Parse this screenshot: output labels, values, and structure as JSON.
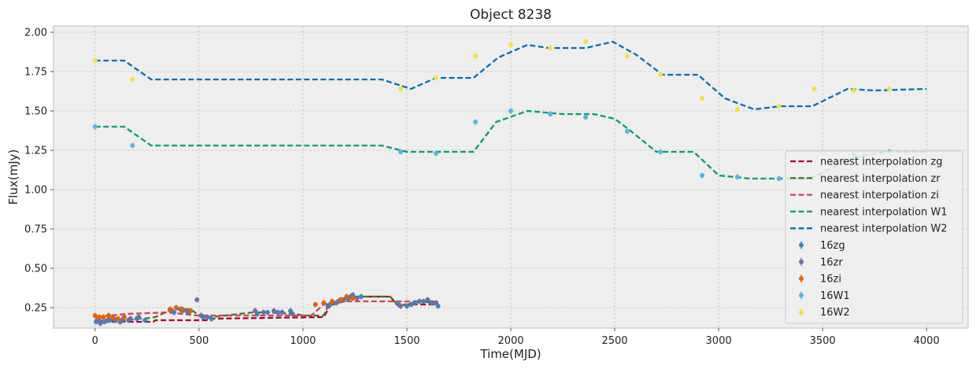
{
  "chart_data": {
    "type": "line",
    "title": "Object 8238",
    "xlabel": "Time(MJD)",
    "ylabel": "Flux(mJy)",
    "xlim": [
      -200,
      4200
    ],
    "ylim": [
      0.12,
      2.04
    ],
    "xticks": [
      0,
      500,
      1000,
      1500,
      2000,
      2500,
      3000,
      3500,
      4000
    ],
    "xtick_labels": [
      "0",
      "500",
      "1000",
      "1500",
      "2000",
      "2500",
      "3000",
      "3500",
      "4000"
    ],
    "yticks": [
      0.25,
      0.5,
      0.75,
      1.0,
      1.25,
      1.5,
      1.75,
      2.0
    ],
    "ytick_labels": [
      "0.25",
      "0.50",
      "0.75",
      "1.00",
      "1.25",
      "1.50",
      "1.75",
      "2.00"
    ],
    "grid": true,
    "legend_position": "lower-right",
    "interpolation_series": [
      {
        "name": "nearest interpolation zg",
        "color": "#A60628",
        "x": [
          0,
          280,
          290,
          560,
          570,
          1100,
          1130,
          1160,
          1200,
          1270,
          1420,
          1450,
          1650
        ],
        "y": [
          0.16,
          0.16,
          0.17,
          0.17,
          0.18,
          0.19,
          0.26,
          0.29,
          0.31,
          0.32,
          0.32,
          0.27,
          0.27
        ]
      },
      {
        "name": "nearest interpolation zr",
        "color": "#467821",
        "x": [
          0,
          160,
          200,
          240,
          290,
          370,
          460,
          500,
          560,
          760,
          820,
          960,
          1000,
          1100,
          1120,
          1200,
          1250,
          1420,
          1460,
          1530,
          1580,
          1650
        ],
        "y": [
          0.17,
          0.17,
          0.18,
          0.18,
          0.19,
          0.24,
          0.24,
          0.2,
          0.19,
          0.22,
          0.22,
          0.21,
          0.2,
          0.2,
          0.26,
          0.29,
          0.32,
          0.32,
          0.26,
          0.28,
          0.29,
          0.27
        ]
      },
      {
        "name": "nearest interpolation zi",
        "color": "#CF4457",
        "x": [
          0,
          150,
          350,
          490,
          1040,
          1100,
          1200,
          1650
        ],
        "y": [
          0.19,
          0.21,
          0.22,
          0.2,
          0.2,
          0.27,
          0.29,
          0.29
        ]
      },
      {
        "name": "nearest interpolation W1",
        "color": "#009E73",
        "x": [
          0,
          140,
          270,
          1380,
          1500,
          1820,
          1930,
          2080,
          2250,
          2400,
          2500,
          2570,
          2700,
          2880,
          3000,
          3150,
          3440,
          3660,
          3800,
          4000
        ],
        "y": [
          1.4,
          1.4,
          1.28,
          1.28,
          1.24,
          1.24,
          1.43,
          1.5,
          1.48,
          1.48,
          1.45,
          1.38,
          1.24,
          1.24,
          1.09,
          1.07,
          1.07,
          1.21,
          1.24,
          1.24
        ]
      },
      {
        "name": "nearest interpolation W2",
        "color": "#0072B2",
        "x": [
          0,
          140,
          270,
          1380,
          1520,
          1640,
          1820,
          1940,
          2080,
          2180,
          2360,
          2490,
          2600,
          2730,
          2900,
          3030,
          3170,
          3300,
          3450,
          3620,
          3750,
          4000
        ],
        "y": [
          1.82,
          1.82,
          1.7,
          1.7,
          1.64,
          1.71,
          1.71,
          1.84,
          1.92,
          1.9,
          1.9,
          1.94,
          1.86,
          1.73,
          1.73,
          1.58,
          1.51,
          1.53,
          1.53,
          1.64,
          1.63,
          1.64
        ]
      }
    ],
    "point_series": [
      {
        "name": "16zg",
        "color": "#348ABD",
        "x": [
          5,
          25,
          45,
          70,
          95,
          120,
          160,
          200,
          240,
          380,
          420,
          450,
          520,
          560,
          780,
          830,
          880,
          940,
          1130,
          1170,
          1210,
          1240,
          1280,
          1460,
          1500,
          1540,
          1580,
          1620,
          1650
        ],
        "y": [
          0.16,
          0.15,
          0.16,
          0.17,
          0.17,
          0.16,
          0.17,
          0.18,
          0.17,
          0.22,
          0.23,
          0.22,
          0.19,
          0.18,
          0.21,
          0.22,
          0.22,
          0.23,
          0.27,
          0.29,
          0.31,
          0.33,
          0.32,
          0.27,
          0.26,
          0.28,
          0.29,
          0.28,
          0.26
        ]
      },
      {
        "name": "16zr",
        "color": "#7A68A6",
        "x": [
          10,
          30,
          60,
          90,
          130,
          170,
          210,
          370,
          410,
          440,
          490,
          510,
          540,
          770,
          810,
          860,
          900,
          950,
          1120,
          1160,
          1190,
          1230,
          1260,
          1470,
          1520,
          1560,
          1600,
          1640
        ],
        "y": [
          0.17,
          0.16,
          0.17,
          0.18,
          0.17,
          0.18,
          0.19,
          0.23,
          0.24,
          0.23,
          0.3,
          0.2,
          0.19,
          0.23,
          0.22,
          0.23,
          0.22,
          0.21,
          0.26,
          0.28,
          0.3,
          0.32,
          0.31,
          0.26,
          0.27,
          0.29,
          0.3,
          0.28
        ]
      },
      {
        "name": "16zi",
        "color": "#E66100",
        "x": [
          0,
          20,
          40,
          65,
          85,
          110,
          140,
          360,
          390,
          420,
          460,
          1060,
          1100,
          1140,
          1180,
          1210,
          1240
        ],
        "y": [
          0.2,
          0.19,
          0.19,
          0.2,
          0.19,
          0.18,
          0.19,
          0.24,
          0.25,
          0.24,
          0.23,
          0.27,
          0.28,
          0.29,
          0.3,
          0.32,
          0.31
        ]
      },
      {
        "name": "16W1",
        "color": "#56B4E9",
        "x": [
          0,
          180,
          1470,
          1640,
          1830,
          2000,
          2190,
          2360,
          2560,
          2720,
          2920,
          3090,
          3290,
          3650,
          3820
        ],
        "y": [
          1.4,
          1.28,
          1.24,
          1.23,
          1.43,
          1.5,
          1.48,
          1.46,
          1.37,
          1.24,
          1.09,
          1.08,
          1.07,
          1.22,
          1.24
        ]
      },
      {
        "name": "16W2",
        "color": "#F0E442",
        "x": [
          0,
          180,
          1470,
          1640,
          1830,
          2000,
          2190,
          2360,
          2560,
          2720,
          2920,
          3090,
          3290,
          3460,
          3650,
          3820
        ],
        "y": [
          1.82,
          1.7,
          1.64,
          1.71,
          1.85,
          1.92,
          1.9,
          1.94,
          1.85,
          1.73,
          1.58,
          1.51,
          1.53,
          1.64,
          1.63,
          1.64
        ]
      }
    ]
  }
}
